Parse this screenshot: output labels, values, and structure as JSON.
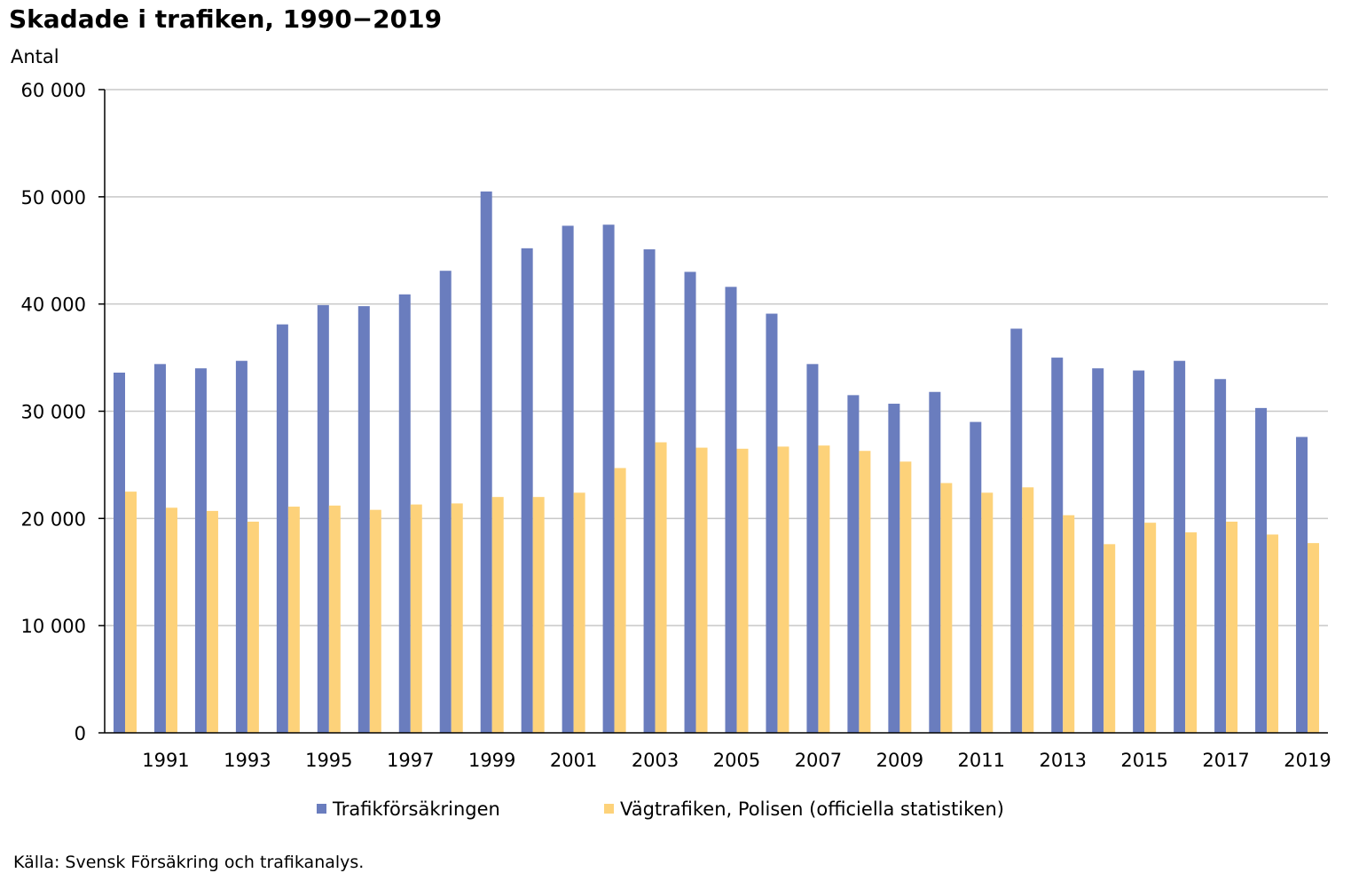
{
  "chart_data": {
    "type": "bar",
    "title": "Skadade i trafiken, 1990−2019",
    "ylabel": "Antal",
    "xlabel": "",
    "ylim": [
      0,
      60000
    ],
    "y_ticks": [
      0,
      10000,
      20000,
      30000,
      40000,
      50000,
      60000
    ],
    "y_tick_labels": [
      "0",
      "10 000",
      "20 000",
      "30 000",
      "40 000",
      "50 000",
      "60 000"
    ],
    "grid": true,
    "legend_position": "bottom",
    "categories": [
      "1990",
      "1991",
      "1992",
      "1993",
      "1994",
      "1995",
      "1996",
      "1997",
      "1998",
      "1999",
      "2000",
      "2001",
      "2002",
      "2003",
      "2004",
      "2005",
      "2006",
      "2007",
      "2008",
      "2009",
      "2010",
      "2011",
      "2012",
      "2013",
      "2014",
      "2015",
      "2016",
      "2017",
      "2018",
      "2019"
    ],
    "x_tick_labels": [
      "1991",
      "1993",
      "1995",
      "1997",
      "1999",
      "2001",
      "2003",
      "2005",
      "2007",
      "2009",
      "2011",
      "2013",
      "2015",
      "2017",
      "2019"
    ],
    "series": [
      {
        "name": "Trafikförsäkringen",
        "color": "#6a7dbe",
        "values": [
          33600,
          34400,
          34000,
          34700,
          38100,
          39900,
          39800,
          40900,
          43100,
          50500,
          45200,
          47300,
          47400,
          45100,
          43000,
          41600,
          39100,
          34400,
          31500,
          30700,
          31800,
          29000,
          37700,
          35000,
          34000,
          33800,
          34700,
          33000,
          30300,
          27600
        ]
      },
      {
        "name": "Vägtrafiken, Polisen (officiella statistiken)",
        "color": "#fdd27a",
        "values": [
          22500,
          21000,
          20700,
          19700,
          21100,
          21200,
          20800,
          21300,
          21400,
          22000,
          22000,
          22400,
          24700,
          27100,
          26600,
          26500,
          26700,
          26800,
          26300,
          25300,
          23300,
          22400,
          22900,
          20300,
          17600,
          19600,
          18700,
          19700,
          18500,
          17700
        ]
      }
    ],
    "source": "Källa: Svensk Försäkring och trafikanalys."
  }
}
